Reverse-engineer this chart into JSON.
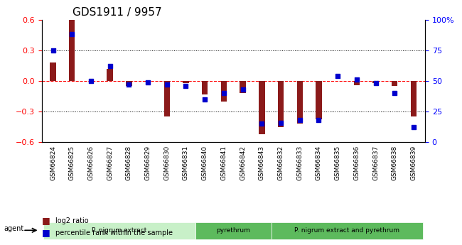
{
  "title": "GDS1911 / 9957",
  "categories": [
    "GSM66824",
    "GSM66825",
    "GSM66826",
    "GSM66827",
    "GSM66828",
    "GSM66829",
    "GSM66830",
    "GSM66831",
    "GSM66840",
    "GSM66841",
    "GSM66842",
    "GSM66843",
    "GSM66832",
    "GSM66833",
    "GSM66834",
    "GSM66835",
    "GSM66836",
    "GSM66837",
    "GSM66838",
    "GSM66839"
  ],
  "log2_ratio": [
    0.18,
    0.62,
    0.0,
    0.12,
    -0.05,
    -0.01,
    -0.35,
    -0.02,
    -0.13,
    -0.2,
    -0.12,
    -0.52,
    -0.45,
    -0.42,
    -0.38,
    0.0,
    -0.04,
    -0.02,
    -0.05,
    -0.35
  ],
  "pct_rank": [
    75,
    88,
    50,
    62,
    47,
    49,
    47,
    46,
    35,
    40,
    43,
    15,
    16,
    18,
    18,
    54,
    51,
    48,
    40,
    12
  ],
  "groups": [
    {
      "label": "P. nigrum extract",
      "start": 0,
      "end": 8,
      "color": "#90ee90"
    },
    {
      "label": "pyrethrum",
      "start": 8,
      "end": 12,
      "color": "#5dba5d"
    },
    {
      "label": "P. nigrum extract and pyrethrum",
      "start": 12,
      "end": 20,
      "color": "#5dba5d"
    }
  ],
  "ylim_left": [
    -0.6,
    0.6
  ],
  "ylim_right": [
    0,
    100
  ],
  "yticks_left": [
    -0.6,
    -0.3,
    0.0,
    0.3,
    0.6
  ],
  "yticks_right": [
    0,
    25,
    50,
    75,
    100
  ],
  "bar_color_red": "#8B1A1A",
  "bar_color_blue": "#0000CD",
  "hline_color": "#FF0000",
  "grid_color": "#000000",
  "bar_width": 0.35
}
